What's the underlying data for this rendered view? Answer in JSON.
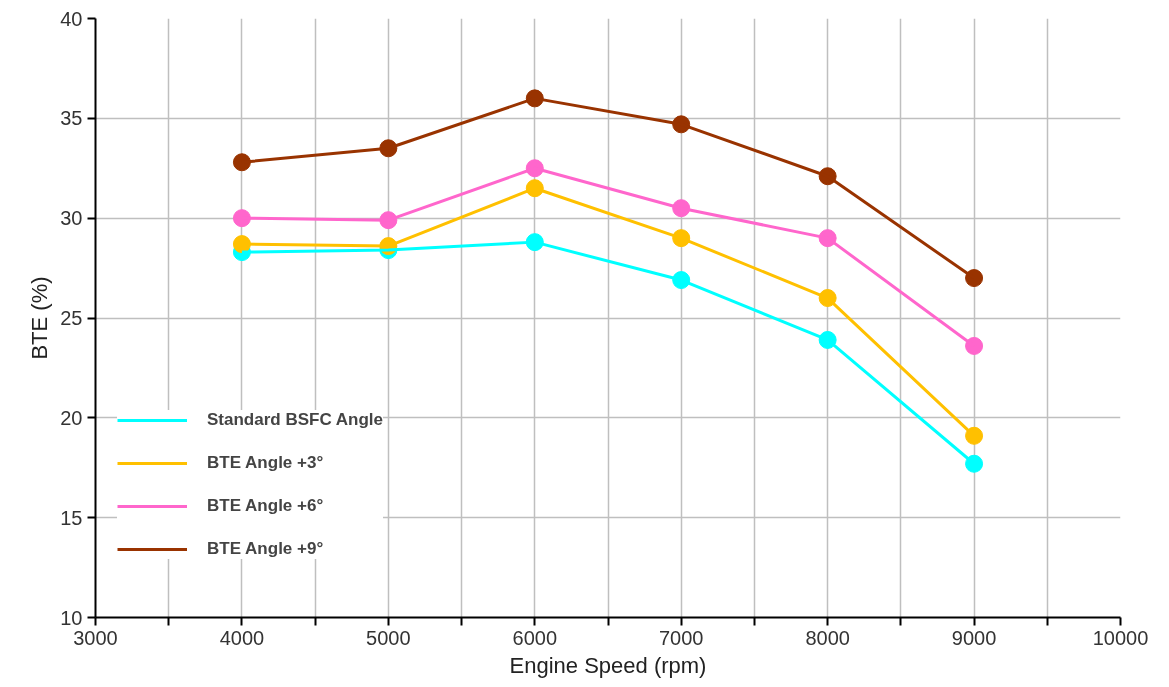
{
  "chart_data": {
    "type": "line",
    "xlabel": "Engine Speed (rpm)",
    "ylabel": "BTE (%)",
    "x": [
      4000,
      5000,
      6000,
      7000,
      8000,
      9000
    ],
    "series": [
      {
        "name": "Standard BSFC Angle",
        "color": "#00ffff",
        "values": [
          28.3,
          28.4,
          28.8,
          26.9,
          23.9,
          17.7
        ]
      },
      {
        "name": "BTE Angle +3°",
        "color": "#ffc000",
        "values": [
          28.7,
          28.6,
          31.5,
          29.0,
          26.0,
          19.1
        ]
      },
      {
        "name": "BTE Angle +6°",
        "color": "#ff66cc",
        "values": [
          30.0,
          29.9,
          32.5,
          30.5,
          29.0,
          23.6
        ]
      },
      {
        "name": "BTE Angle +9°",
        "color": "#993300",
        "values": [
          32.8,
          33.5,
          36.0,
          34.7,
          32.1,
          27.0
        ]
      }
    ],
    "xlim": [
      3000,
      10000
    ],
    "xticks": [
      3000,
      {
        "value": 3500,
        "label": null
      },
      4000,
      {
        "value": 4500,
        "label": null
      },
      5000,
      {
        "value": 5500,
        "label": null
      },
      6000,
      {
        "value": 6500,
        "label": null
      },
      7000,
      {
        "value": 7500,
        "label": null
      },
      8000,
      {
        "value": 8500,
        "label": null
      },
      9000,
      {
        "value": 9500,
        "label": null
      },
      10000
    ],
    "ylim": [
      10,
      40
    ],
    "yticks": [
      10,
      15,
      20,
      25,
      30,
      35,
      40
    ],
    "grid": true,
    "legend": "left",
    "marker": "circle",
    "line_style": "solid"
  }
}
